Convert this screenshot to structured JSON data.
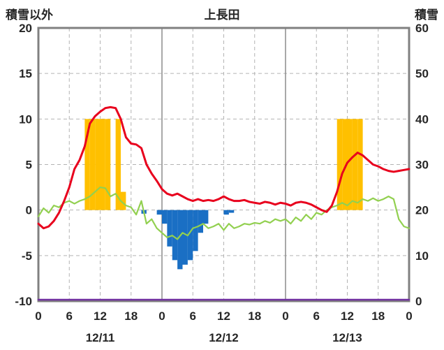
{
  "header": {
    "left_axis_title": "積雪以外",
    "chart_title": "上長田",
    "right_axis_title": "積雪"
  },
  "style": {
    "background": "#ffffff",
    "grid_color": "#b3b3b3",
    "day_line_color": "#8c8c8c",
    "border_color": "#808080",
    "text_color": "#262626"
  },
  "chart_data": {
    "type": "line+bar combo",
    "title": "上長田",
    "x_axis": {
      "unit": "hour",
      "range_hours": [
        0,
        72
      ],
      "tick_hours": [
        0,
        6,
        12,
        18,
        24,
        30,
        36,
        42,
        48,
        54,
        60,
        66,
        72
      ],
      "tick_labels": [
        "0",
        "6",
        "12",
        "18",
        "0",
        "6",
        "12",
        "18",
        "0",
        "6",
        "12",
        "18",
        "0"
      ],
      "day_separator_hours": [
        24,
        48
      ],
      "day_labels": [
        {
          "label": "12/11",
          "center_hour": 12
        },
        {
          "label": "12/12",
          "center_hour": 36
        },
        {
          "label": "12/13",
          "center_hour": 60
        }
      ]
    },
    "left_axis": {
      "title": "積雪以外",
      "range": [
        -10,
        20
      ],
      "ticks": [
        20,
        15,
        10,
        5,
        0,
        -5,
        -10
      ]
    },
    "right_axis": {
      "title": "積雪",
      "range": [
        0,
        60
      ],
      "ticks": [
        60,
        50,
        40,
        30,
        20,
        10,
        0
      ]
    },
    "grid": {
      "horizontal_dashed_values": [
        15,
        10,
        5,
        0,
        -5
      ]
    },
    "series": [
      {
        "name": "orange-bars",
        "type": "bar",
        "color": "#ffc000",
        "axis": "left",
        "values_by_hour": {
          "9": 10,
          "10": 10,
          "11": 10,
          "12": 10,
          "13": 10,
          "15": 10,
          "16": 2,
          "58": 10,
          "59": 10,
          "60": 10,
          "61": 10,
          "62": 10
        }
      },
      {
        "name": "blue-bars",
        "type": "bar",
        "color": "#1a6fc4",
        "axis": "left",
        "values_by_hour": {
          "20": -0.4,
          "23": -0.5,
          "24": -1.5,
          "25": -4.0,
          "26": -5.5,
          "27": -6.5,
          "28": -6.0,
          "29": -5.5,
          "30": -4.5,
          "31": -2.5,
          "32": -1.5,
          "36": -0.5,
          "37": -0.3
        }
      },
      {
        "name": "snow-depth-line",
        "type": "line",
        "color": "#7030a0",
        "width": 2.5,
        "axis": "right",
        "constant_value": -10
      },
      {
        "name": "green-line",
        "type": "line",
        "color": "#92d050",
        "width": 2.2,
        "axis": "left",
        "values": [
          -0.7,
          0.2,
          -0.3,
          0.5,
          0.3,
          0.8,
          1.0,
          0.7,
          1.0,
          1.2,
          1.5,
          2.0,
          2.5,
          2.4,
          1.5,
          1.8,
          1.0,
          0.5,
          0.3,
          -0.5,
          1.0,
          -1.5,
          -1.0,
          -2.0,
          -2.5,
          -3.0,
          -2.8,
          -3.2,
          -2.5,
          -2.8,
          -2.0,
          -1.8,
          -1.5,
          -2.0,
          -1.8,
          -1.5,
          -2.2,
          -1.5,
          -2.0,
          -1.8,
          -1.5,
          -1.6,
          -1.4,
          -1.5,
          -1.2,
          -1.4,
          -1.0,
          -1.2,
          -1.0,
          -1.5,
          -0.8,
          -1.2,
          -0.5,
          -1.0,
          -0.3,
          -0.5,
          0.0,
          0.3,
          0.5,
          0.8,
          0.5,
          1.0,
          0.8,
          1.2,
          1.0,
          1.3,
          1.0,
          1.2,
          1.5,
          1.2,
          -1.0,
          -1.8,
          -2.0
        ]
      },
      {
        "name": "red-line",
        "type": "line",
        "color": "#e8001d",
        "width": 3,
        "axis": "left",
        "values": [
          -1.5,
          -2.0,
          -1.8,
          -1.2,
          -0.3,
          1.0,
          2.5,
          4.5,
          5.5,
          7.0,
          9.5,
          10.3,
          10.8,
          11.2,
          11.3,
          11.2,
          10.0,
          8.0,
          7.3,
          7.2,
          6.8,
          5.0,
          4.0,
          3.2,
          2.3,
          1.8,
          1.6,
          1.8,
          1.5,
          1.2,
          1.0,
          1.2,
          1.0,
          1.1,
          1.0,
          1.2,
          1.5,
          1.2,
          1.0,
          1.0,
          1.1,
          0.9,
          0.8,
          0.7,
          0.9,
          0.8,
          0.6,
          0.8,
          0.7,
          0.5,
          0.8,
          0.9,
          0.8,
          0.6,
          0.3,
          0.0,
          -0.2,
          0.5,
          2.0,
          4.0,
          5.2,
          5.8,
          6.3,
          6.0,
          5.5,
          5.0,
          4.8,
          4.5,
          4.3,
          4.2,
          4.3,
          4.4,
          4.5
        ]
      }
    ]
  }
}
